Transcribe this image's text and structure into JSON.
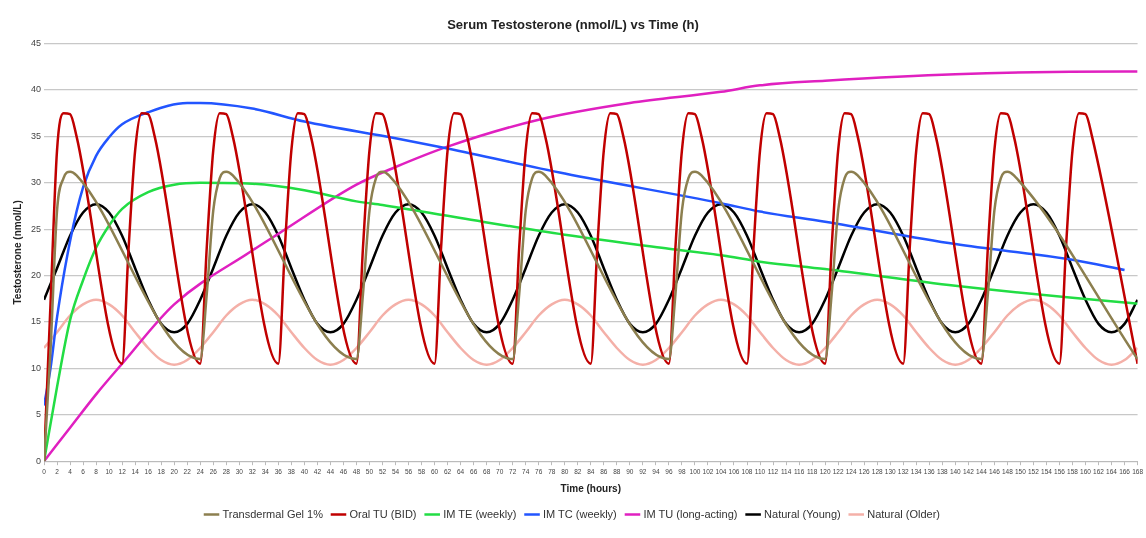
{
  "chart_data": {
    "type": "line",
    "title": "Serum Testosterone (nmol/L) vs Time (h)",
    "xlabel": "Time (hours)",
    "ylabel": "Testosterone (nmol/L)",
    "xlim": [
      0,
      168
    ],
    "xticks": [
      0,
      2,
      4,
      6,
      8,
      10,
      12,
      14,
      16,
      18,
      20,
      22,
      24,
      26,
      28,
      30,
      32,
      34,
      36,
      38,
      40,
      42,
      44,
      46,
      48,
      50,
      52,
      54,
      56,
      58,
      60,
      62,
      64,
      66,
      68,
      70,
      72,
      74,
      76,
      78,
      80,
      82,
      84,
      86,
      88,
      90,
      92,
      94,
      96,
      98,
      100,
      102,
      104,
      106,
      108,
      110,
      112,
      114,
      116,
      118,
      120,
      122,
      124,
      126,
      128,
      130,
      132,
      134,
      136,
      138,
      140,
      142,
      144,
      146,
      148,
      150,
      152,
      154,
      156,
      158,
      160,
      162,
      164,
      166,
      168
    ],
    "ylim": [
      0,
      45
    ],
    "yticks": [
      0,
      5,
      10,
      15,
      20,
      25,
      30,
      35,
      40,
      45
    ],
    "grid": "y",
    "legend": "bottom",
    "marker": "none",
    "series": [
      {
        "name": "Transdermal Gel 1%",
        "color": "#8c7f4f",
        "x": [
          0,
          1,
          2,
          3,
          4,
          5,
          24,
          25,
          26,
          27,
          28,
          29,
          48,
          49,
          50,
          51,
          52,
          53,
          72,
          73,
          74,
          75,
          76,
          77,
          96,
          97,
          98,
          99,
          100,
          101,
          120,
          121,
          122,
          123,
          124,
          125,
          144,
          145,
          146,
          147,
          148,
          149,
          168
        ],
        "values": [
          0,
          12,
          27,
          30.5,
          31.2,
          30.8,
          11,
          18,
          27,
          30.5,
          31.2,
          30.8,
          11,
          18,
          27,
          30.5,
          31.2,
          30.8,
          11,
          18,
          27,
          30.5,
          31.2,
          30.8,
          11,
          18,
          27,
          30.5,
          31.2,
          30.8,
          11,
          18,
          27,
          30.5,
          31.2,
          30.8,
          11,
          18,
          27,
          30.5,
          31.2,
          30.8,
          11
        ]
      },
      {
        "name": "Oral TU (BID)",
        "color": "#c00000",
        "x": [
          0,
          1,
          2,
          3,
          4,
          5,
          12,
          13,
          14,
          15,
          16,
          17,
          24,
          25,
          26,
          27,
          28,
          29,
          36,
          37,
          38,
          39,
          40,
          41,
          48,
          49,
          50,
          51,
          52,
          53,
          60,
          61,
          62,
          63,
          64,
          65,
          72,
          73,
          74,
          75,
          76,
          77,
          84,
          85,
          86,
          87,
          88,
          89,
          96,
          97,
          98,
          99,
          100,
          101,
          108,
          109,
          110,
          111,
          112,
          113,
          120,
          121,
          122,
          123,
          124,
          125,
          132,
          133,
          134,
          135,
          136,
          137,
          144,
          145,
          146,
          147,
          148,
          149,
          156,
          157,
          158,
          159,
          160,
          161,
          168
        ],
        "values": [
          0,
          17,
          33.5,
          37.5,
          37.4,
          35,
          10.5,
          23,
          33.5,
          37.5,
          37.4,
          35,
          10.5,
          23,
          33.5,
          37.5,
          37.4,
          35,
          10.5,
          23,
          33.5,
          37.5,
          37.4,
          35,
          10.5,
          23,
          33.5,
          37.5,
          37.4,
          35,
          10.5,
          23,
          33.5,
          37.5,
          37.4,
          35,
          10.5,
          23,
          33.5,
          37.5,
          37.4,
          35,
          10.5,
          23,
          33.5,
          37.5,
          37.4,
          35,
          10.5,
          23,
          33.5,
          37.5,
          37.4,
          35,
          10.5,
          23,
          33.5,
          37.5,
          37.4,
          35,
          10.5,
          23,
          33.5,
          37.5,
          37.4,
          35,
          10.5,
          23,
          33.5,
          37.5,
          37.4,
          35,
          10.5,
          23,
          33.5,
          37.5,
          37.4,
          35,
          10.5,
          23,
          33.5,
          37.5,
          37.4,
          35,
          10.5
        ]
      },
      {
        "name": "IM TE (weekly)",
        "color": "#22dd44",
        "x": [
          0,
          2,
          4,
          6,
          8,
          10,
          12,
          16,
          20,
          24,
          32,
          40,
          48,
          52,
          64,
          80,
          96,
          104,
          110,
          120,
          140,
          166,
          168
        ],
        "values": [
          0,
          8,
          15.2,
          19.5,
          23,
          25.4,
          27.2,
          29,
          29.8,
          30,
          29.9,
          29.2,
          28,
          27.6,
          26.2,
          24.4,
          22.9,
          22.2,
          21.5,
          20.7,
          18.9,
          17.1,
          17
        ]
      },
      {
        "name": "IM TC (weekly)",
        "color": "#2255ff",
        "x": [
          0,
          1,
          2,
          4,
          6,
          8,
          10,
          12,
          16,
          22,
          24,
          32,
          40,
          54,
          62,
          80,
          104,
          110,
          120,
          140,
          158,
          166
        ],
        "values": [
          6,
          10,
          15.5,
          23.7,
          29.5,
          32.9,
          34.9,
          36.3,
          37.6,
          38.6,
          38.6,
          38,
          36.6,
          34.8,
          33.7,
          31,
          27.8,
          26.9,
          25.8,
          23.4,
          21.7,
          20.6
        ]
      },
      {
        "name": "IM TU (long-acting)",
        "color": "#e020c0",
        "x": [
          0,
          4,
          8,
          12,
          20,
          32,
          36,
          48,
          54,
          62,
          76,
          90,
          104,
          110,
          120,
          140,
          166,
          168
        ],
        "values": [
          0,
          3.6,
          7.2,
          10.5,
          16.9,
          22.7,
          24.5,
          29.8,
          31.7,
          33.9,
          36.8,
          38.6,
          39.8,
          40.5,
          41,
          41.7,
          42,
          42
        ]
      },
      {
        "name": "Natural (Young)",
        "color": "#000000",
        "x": [
          0,
          2,
          4,
          6,
          8,
          10,
          12,
          14,
          16,
          18,
          20,
          22,
          24,
          26,
          28,
          30,
          32,
          34,
          36,
          38,
          40,
          42,
          44,
          46,
          48,
          50,
          52,
          54,
          56,
          58,
          60,
          62,
          64,
          66,
          68,
          70,
          72,
          74,
          76,
          78,
          80,
          82,
          84,
          86,
          88,
          90,
          92,
          94,
          96,
          98,
          100,
          102,
          104,
          106,
          108,
          110,
          112,
          114,
          116,
          118,
          120,
          122,
          124,
          126,
          128,
          130,
          132,
          134,
          136,
          138,
          140,
          142,
          144,
          146,
          148,
          150,
          152,
          154,
          156,
          158,
          160,
          162,
          164,
          166,
          168
        ],
        "values": [
          17.4,
          20.8,
          24.3,
          26.8,
          27.7,
          26.8,
          24.3,
          20.8,
          17.4,
          14.8,
          13.9,
          14.8,
          17.4,
          20.8,
          24.3,
          26.8,
          27.7,
          26.8,
          24.3,
          20.8,
          17.4,
          14.8,
          13.9,
          14.8,
          17.4,
          20.8,
          24.3,
          26.8,
          27.7,
          26.8,
          24.3,
          20.8,
          17.4,
          14.8,
          13.9,
          14.8,
          17.4,
          20.8,
          24.3,
          26.8,
          27.7,
          26.8,
          24.3,
          20.8,
          17.4,
          14.8,
          13.9,
          14.8,
          17.4,
          20.8,
          24.3,
          26.8,
          27.7,
          26.8,
          24.3,
          20.8,
          17.4,
          14.8,
          13.9,
          14.8,
          17.4,
          20.8,
          24.3,
          26.8,
          27.7,
          26.8,
          24.3,
          20.8,
          17.4,
          14.8,
          13.9,
          14.8,
          17.4,
          20.8,
          24.3,
          26.8,
          27.7,
          26.8,
          24.3,
          20.8,
          17.4,
          14.8,
          13.9,
          14.8,
          17.4
        ]
      },
      {
        "name": "Natural (Older)",
        "color": "#f4b0a8",
        "x": [
          0,
          2,
          4,
          6,
          8,
          10,
          12,
          14,
          16,
          18,
          20,
          22,
          24,
          26,
          28,
          30,
          32,
          34,
          36,
          38,
          40,
          42,
          44,
          46,
          48,
          50,
          52,
          54,
          56,
          58,
          60,
          62,
          64,
          66,
          68,
          70,
          72,
          74,
          76,
          78,
          80,
          82,
          84,
          86,
          88,
          90,
          92,
          94,
          96,
          98,
          100,
          102,
          104,
          106,
          108,
          110,
          112,
          114,
          116,
          118,
          120,
          122,
          124,
          126,
          128,
          130,
          132,
          134,
          136,
          138,
          140,
          142,
          144,
          146,
          148,
          150,
          152,
          154,
          156,
          158,
          160,
          162,
          164,
          166,
          168
        ],
        "values": [
          12.2,
          13.9,
          15.7,
          16.9,
          17.4,
          16.9,
          15.7,
          13.9,
          12.2,
          10.9,
          10.4,
          10.9,
          12.2,
          13.9,
          15.7,
          16.9,
          17.4,
          16.9,
          15.7,
          13.9,
          12.2,
          10.9,
          10.4,
          10.9,
          12.2,
          13.9,
          15.7,
          16.9,
          17.4,
          16.9,
          15.7,
          13.9,
          12.2,
          10.9,
          10.4,
          10.9,
          12.2,
          13.9,
          15.7,
          16.9,
          17.4,
          16.9,
          15.7,
          13.9,
          12.2,
          10.9,
          10.4,
          10.9,
          12.2,
          13.9,
          15.7,
          16.9,
          17.4,
          16.9,
          15.7,
          13.9,
          12.2,
          10.9,
          10.4,
          10.9,
          12.2,
          13.9,
          15.7,
          16.9,
          17.4,
          16.9,
          15.7,
          13.9,
          12.2,
          10.9,
          10.4,
          10.9,
          12.2,
          13.9,
          15.7,
          16.9,
          17.4,
          16.9,
          15.7,
          13.9,
          12.2,
          10.9,
          10.4,
          10.9,
          12.2
        ]
      }
    ]
  }
}
